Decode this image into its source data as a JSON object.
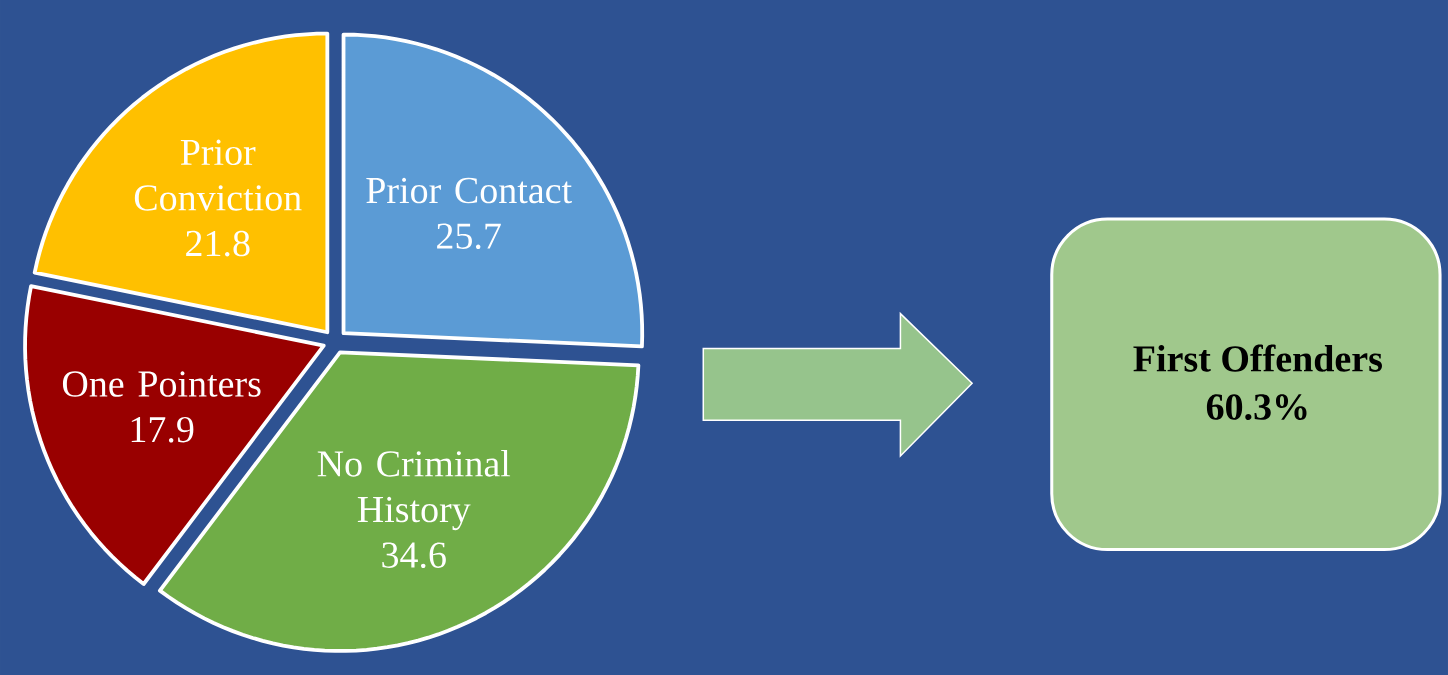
{
  "chart_data": {
    "type": "pie",
    "categories": [
      "Prior Contact",
      "No Criminal History",
      "One Pointers",
      "Prior Conviction"
    ],
    "values": [
      25.7,
      34.6,
      17.9,
      21.8
    ],
    "colors": [
      "#5b9bd5",
      "#70ad47",
      "#990000",
      "#ffc000"
    ],
    "data_labels": true,
    "annotations": [
      "First Offenders",
      "60.3%"
    ]
  }
}
